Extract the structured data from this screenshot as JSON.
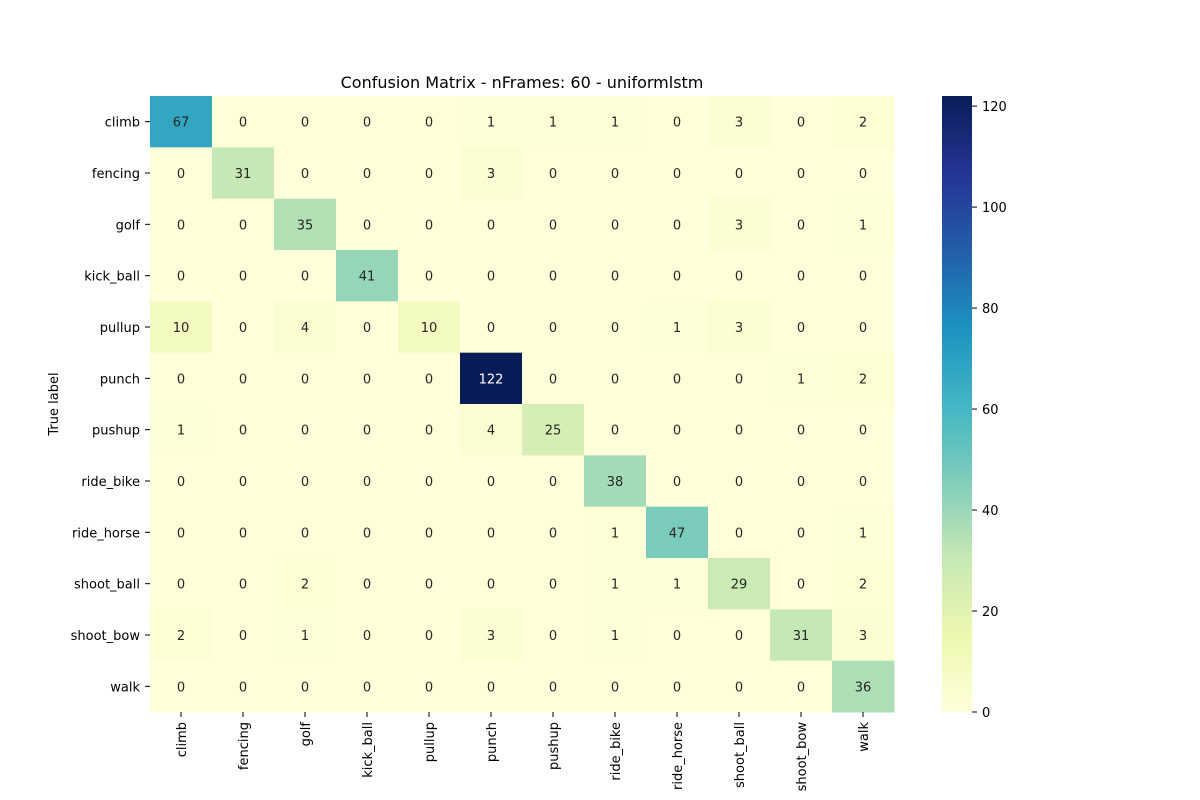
{
  "chart_data": {
    "type": "heatmap",
    "title": "Confusion Matrix - nFrames: 60 - uniformlstm",
    "xlabel": "",
    "ylabel": "True label",
    "x_categories": [
      "climb",
      "fencing",
      "golf",
      "kick_ball",
      "pullup",
      "punch",
      "pushup",
      "ride_bike",
      "ride_horse",
      "shoot_ball",
      "shoot_bow",
      "walk"
    ],
    "y_categories": [
      "climb",
      "fencing",
      "golf",
      "kick_ball",
      "pullup",
      "punch",
      "pushup",
      "ride_bike",
      "ride_horse",
      "shoot_ball",
      "shoot_bow",
      "walk"
    ],
    "values": [
      [
        67,
        0,
        0,
        0,
        0,
        1,
        1,
        1,
        0,
        3,
        0,
        2
      ],
      [
        0,
        31,
        0,
        0,
        0,
        3,
        0,
        0,
        0,
        0,
        0,
        0
      ],
      [
        0,
        0,
        35,
        0,
        0,
        0,
        0,
        0,
        0,
        3,
        0,
        1
      ],
      [
        0,
        0,
        0,
        41,
        0,
        0,
        0,
        0,
        0,
        0,
        0,
        0
      ],
      [
        10,
        0,
        4,
        0,
        10,
        0,
        0,
        0,
        1,
        3,
        0,
        0
      ],
      [
        0,
        0,
        0,
        0,
        0,
        122,
        0,
        0,
        0,
        0,
        1,
        2
      ],
      [
        1,
        0,
        0,
        0,
        0,
        4,
        25,
        0,
        0,
        0,
        0,
        0
      ],
      [
        0,
        0,
        0,
        0,
        0,
        0,
        0,
        38,
        0,
        0,
        0,
        0
      ],
      [
        0,
        0,
        0,
        0,
        0,
        0,
        0,
        1,
        47,
        0,
        0,
        1
      ],
      [
        0,
        0,
        2,
        0,
        0,
        0,
        0,
        1,
        1,
        29,
        0,
        2
      ],
      [
        2,
        0,
        1,
        0,
        0,
        3,
        0,
        1,
        0,
        0,
        31,
        3
      ],
      [
        0,
        0,
        0,
        0,
        0,
        0,
        0,
        0,
        0,
        0,
        0,
        36
      ]
    ],
    "colormap": "YlGnBu",
    "colormap_stops": [
      "#ffffd9",
      "#edf8b1",
      "#c7e9b4",
      "#7fcdbb",
      "#41b6c4",
      "#1d91c0",
      "#225ea8",
      "#253494",
      "#081d58"
    ],
    "vmin": 0,
    "vmax": 122,
    "colorbar_ticks": [
      0,
      20,
      40,
      60,
      80,
      100,
      120
    ],
    "grid": false
  }
}
